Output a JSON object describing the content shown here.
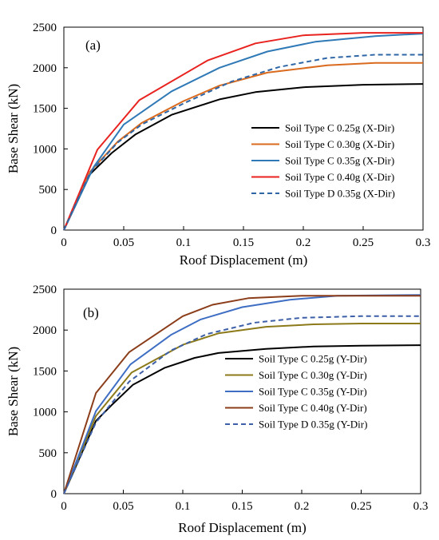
{
  "chart_data": [
    {
      "type": "line",
      "panel_label": "(a)",
      "xlabel": "Roof Displacement (m)",
      "ylabel": "Base Shear (kN)",
      "xlim": [
        0,
        0.3
      ],
      "ylim": [
        0,
        2500
      ],
      "xticks": [
        "0",
        "0.05",
        "0.1",
        "0.15",
        "0.2",
        "0.25",
        "0.3"
      ],
      "yticks": [
        "0",
        "500",
        "1000",
        "1500",
        "2000",
        "2500"
      ],
      "grid": false,
      "legend": "right-middle",
      "series": [
        {
          "name": "Soil Type C 0.25g (X-Dir)",
          "color": "#000000",
          "dashed": false,
          "x": [
            0,
            0.022,
            0.04,
            0.06,
            0.09,
            0.13,
            0.16,
            0.2,
            0.25,
            0.3
          ],
          "y": [
            0,
            690,
            950,
            1180,
            1420,
            1610,
            1700,
            1760,
            1790,
            1800
          ]
        },
        {
          "name": "Soil Type C 0.30g (X-Dir)",
          "color": "#d96a1e",
          "dashed": false,
          "x": [
            0,
            0.022,
            0.045,
            0.065,
            0.1,
            0.13,
            0.17,
            0.22,
            0.26,
            0.3
          ],
          "y": [
            0,
            720,
            1090,
            1320,
            1590,
            1780,
            1940,
            2030,
            2060,
            2060
          ]
        },
        {
          "name": "Soil Type C 0.35g (X-Dir)",
          "color": "#2f79b6",
          "dashed": false,
          "x": [
            0,
            0.025,
            0.05,
            0.09,
            0.13,
            0.17,
            0.21,
            0.26,
            0.3
          ],
          "y": [
            0,
            780,
            1300,
            1710,
            2000,
            2200,
            2320,
            2390,
            2420
          ]
        },
        {
          "name": "Soil Type C 0.40g (X-Dir)",
          "color": "#e8231f",
          "dashed": false,
          "x": [
            0,
            0.028,
            0.063,
            0.12,
            0.16,
            0.2,
            0.25,
            0.3
          ],
          "y": [
            0,
            990,
            1600,
            2090,
            2300,
            2400,
            2430,
            2430
          ]
        },
        {
          "name": "Soil Type D 0.35g (X-Dir)",
          "color": "#2f67a6",
          "dashed": true,
          "x": [
            0,
            0.022,
            0.045,
            0.065,
            0.1,
            0.14,
            0.18,
            0.22,
            0.26,
            0.3
          ],
          "y": [
            0,
            710,
            1080,
            1300,
            1560,
            1830,
            2010,
            2120,
            2160,
            2160
          ]
        }
      ]
    },
    {
      "type": "line",
      "panel_label": "(b)",
      "xlabel": "Roof Displacement (m)",
      "ylabel": "Base Shear (kN)",
      "xlim": [
        0,
        0.3
      ],
      "ylim": [
        0,
        2500
      ],
      "xticks": [
        "0",
        "0.05",
        "0.1",
        "0.15",
        "0.2",
        "0.25",
        "0.3"
      ],
      "yticks": [
        "0",
        "500",
        "1000",
        "1500",
        "2000",
        "2500"
      ],
      "grid": false,
      "legend": "right-middle",
      "series": [
        {
          "name": "Soil Type C 0.25g (Y-Dir)",
          "color": "#000000",
          "dashed": false,
          "x": [
            0,
            0.027,
            0.04,
            0.058,
            0.085,
            0.11,
            0.13,
            0.17,
            0.21,
            0.25,
            0.3
          ],
          "y": [
            0,
            890,
            1080,
            1330,
            1540,
            1660,
            1720,
            1770,
            1800,
            1810,
            1815
          ]
        },
        {
          "name": "Soil Type C 0.30g (Y-Dir)",
          "color": "#8c7a1a",
          "dashed": false,
          "x": [
            0,
            0.027,
            0.057,
            0.1,
            0.13,
            0.17,
            0.21,
            0.25,
            0.3
          ],
          "y": [
            0,
            950,
            1480,
            1820,
            1960,
            2040,
            2070,
            2080,
            2080
          ]
        },
        {
          "name": "Soil Type C 0.35g (Y-Dir)",
          "color": "#3e6ec4",
          "dashed": false,
          "x": [
            0,
            0.027,
            0.056,
            0.09,
            0.115,
            0.15,
            0.19,
            0.23,
            0.3
          ],
          "y": [
            0,
            1010,
            1580,
            1940,
            2130,
            2280,
            2370,
            2420,
            2430
          ]
        },
        {
          "name": "Soil Type C 0.40g (Y-Dir)",
          "color": "#8b3d1a",
          "dashed": false,
          "x": [
            0,
            0.027,
            0.055,
            0.1,
            0.125,
            0.155,
            0.2,
            0.25,
            0.3
          ],
          "y": [
            0,
            1230,
            1730,
            2170,
            2310,
            2390,
            2420,
            2420,
            2420
          ]
        },
        {
          "name": "Soil Type D 0.35g (Y-Dir)",
          "color": "#3c5fa8",
          "dashed": true,
          "x": [
            0,
            0.027,
            0.055,
            0.09,
            0.12,
            0.16,
            0.2,
            0.25,
            0.3
          ],
          "y": [
            0,
            870,
            1370,
            1750,
            1950,
            2090,
            2150,
            2170,
            2170
          ]
        }
      ]
    }
  ]
}
